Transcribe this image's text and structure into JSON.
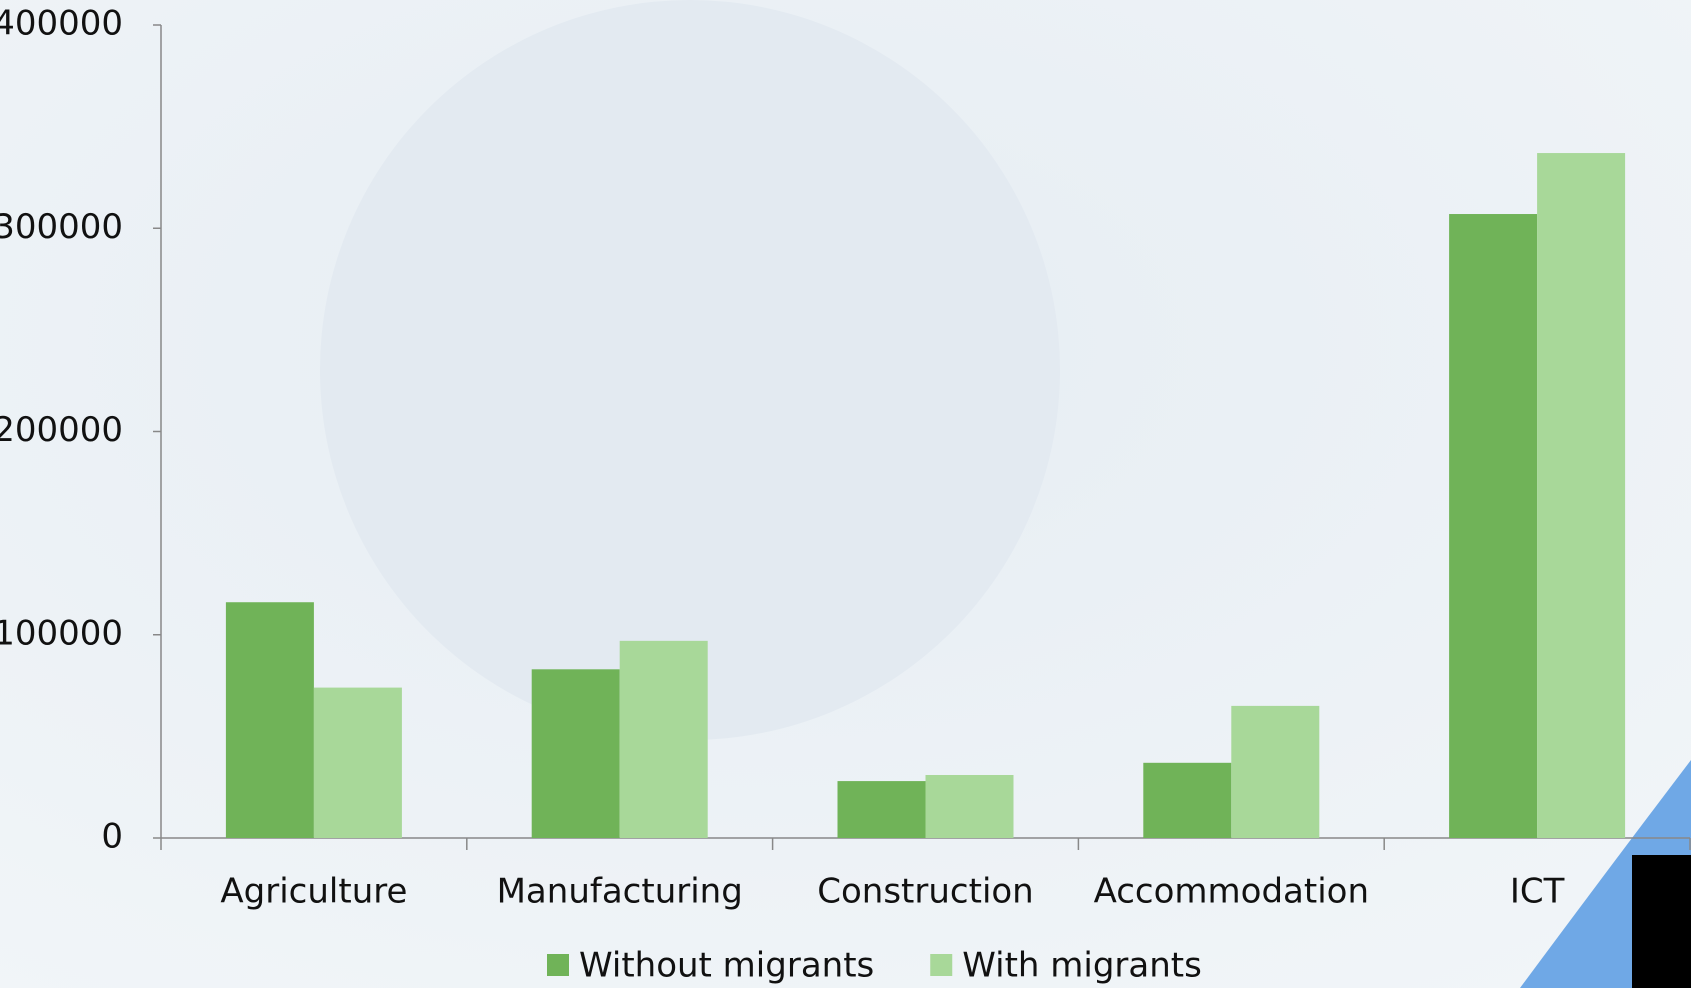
{
  "chart_data": {
    "type": "bar",
    "categories": [
      "Agriculture",
      "Manufacturing",
      "Construction",
      "Accommodation",
      "ICT"
    ],
    "series": [
      {
        "name": "Without migrants",
        "color": "#70b358",
        "values": [
          116000,
          83000,
          28000,
          37000,
          307000
        ]
      },
      {
        "name": "With migrants",
        "color": "#a8d899",
        "values": [
          74000,
          97000,
          31000,
          65000,
          337000
        ]
      }
    ],
    "ylim": [
      0,
      400000
    ],
    "yticks": [
      0,
      100000,
      200000,
      300000,
      400000
    ],
    "grid": false,
    "legend": "bottom"
  }
}
